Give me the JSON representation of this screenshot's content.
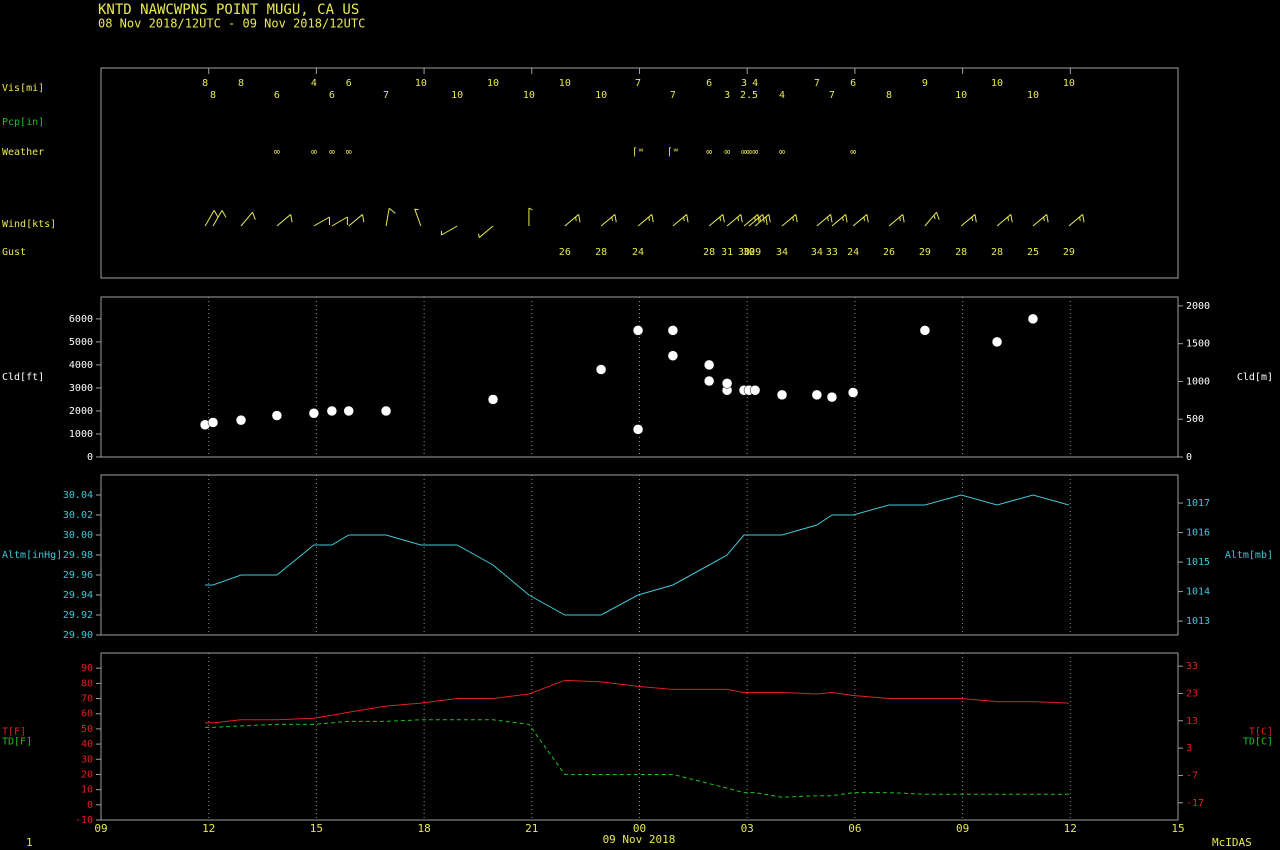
{
  "header": {
    "station": "KNTD  NAWCWPNS POINT MUGU, CA US",
    "period": "08 Nov 2018/12UTC - 09 Nov 2018/12UTC"
  },
  "footer": {
    "page": "1",
    "date": "09 Nov 2018",
    "brand": "McIDAS"
  },
  "chart_data": {
    "type": "meteogram",
    "grid": true,
    "xlim": [
      9,
      39
    ],
    "xticks": [
      {
        "value": 9,
        "label": "09"
      },
      {
        "value": 12,
        "label": "12"
      },
      {
        "value": 15,
        "label": "15"
      },
      {
        "value": 18,
        "label": "18"
      },
      {
        "value": 21,
        "label": "21"
      },
      {
        "value": 24,
        "label": "00"
      },
      {
        "value": 27,
        "label": "03"
      },
      {
        "value": 30,
        "label": "06"
      },
      {
        "value": 33,
        "label": "09"
      },
      {
        "value": 36,
        "label": "12"
      },
      {
        "value": 39,
        "label": "15"
      }
    ],
    "times": [
      11.9,
      12.12,
      12.9,
      13.9,
      14.93,
      15.43,
      15.9,
      16.94,
      17.91,
      18.92,
      19.92,
      20.92,
      21.92,
      22.93,
      23.96,
      24.93,
      25.94,
      26.44,
      26.91,
      27.05,
      27.22,
      27.97,
      28.94,
      29.36,
      29.95,
      30.95,
      31.95,
      32.96,
      33.96,
      34.96,
      35.96
    ],
    "obs_panel": {
      "vis_label": "Vis[mi]",
      "vis": [
        8,
        8,
        8,
        6,
        4,
        6,
        6,
        7,
        10,
        10,
        10,
        10,
        10,
        10,
        7,
        7,
        6,
        3,
        3,
        2.5,
        4,
        4,
        7,
        7,
        6,
        8,
        9,
        10,
        10,
        10,
        10
      ],
      "pcp_label": "Pcp[in]",
      "weather_label": "Weather",
      "weather": [
        null,
        null,
        null,
        "∞",
        "∞",
        "∞",
        "∞",
        null,
        null,
        null,
        null,
        null,
        null,
        null,
        "⌈ʷ",
        "⌈ʷ",
        "∞",
        "∞",
        "∞",
        "∞",
        "∞",
        "∞",
        null,
        null,
        "∞",
        null,
        null,
        null,
        null,
        null,
        null
      ],
      "wind_label": "Wind[kts]",
      "wind_dir": [
        30,
        30,
        40,
        50,
        60,
        60,
        50,
        10,
        340,
        240,
        230,
        0,
        50,
        50,
        50,
        50,
        50,
        50,
        50,
        50,
        50,
        50,
        50,
        50,
        50,
        50,
        40,
        50,
        50,
        50,
        50
      ],
      "wind_speed": [
        10,
        10,
        10,
        10,
        10,
        10,
        10,
        10,
        5,
        5,
        5,
        5,
        15,
        15,
        15,
        15,
        15,
        15,
        15,
        15,
        20,
        15,
        15,
        15,
        15,
        15,
        15,
        15,
        15,
        15,
        15
      ],
      "gust_label": "Gust",
      "gust": [
        null,
        null,
        null,
        null,
        null,
        null,
        null,
        null,
        null,
        null,
        null,
        null,
        26,
        28,
        24,
        null,
        28,
        31,
        30,
        30,
        29,
        34,
        34,
        33,
        24,
        26,
        29,
        28,
        28,
        25,
        29
      ]
    },
    "panels": [
      {
        "mark": "points",
        "y_labels": [
          "Cld[ft]"
        ],
        "y2_labels": [
          "Cld[m]"
        ],
        "label_color": "#ffffff",
        "ylim": [
          0,
          6950
        ],
        "yticks": [
          0,
          1000,
          2000,
          3000,
          4000,
          5000,
          6000
        ],
        "y2lim": [
          0,
          2118
        ],
        "y2ticks": [
          0,
          500,
          1000,
          1500,
          2000
        ],
        "series": [
          {
            "color": "#ffffff",
            "values": [
              1400,
              1500,
              1600,
              1800,
              1900,
              2000,
              2000,
              2000,
              null,
              null,
              2500,
              null,
              null,
              3800,
              1200,
              4400,
              3300,
              2900,
              2900,
              2900,
              2900,
              2700,
              2700,
              2600,
              2800,
              null,
              5500,
              null,
              5000,
              6000,
              null
            ]
          },
          {
            "color": "#ffffff",
            "values": [
              null,
              null,
              null,
              null,
              null,
              null,
              null,
              null,
              null,
              null,
              null,
              null,
              null,
              null,
              5500,
              5500,
              4000,
              3200,
              null,
              null,
              null,
              null,
              null,
              null,
              null,
              null,
              null,
              null,
              null,
              null,
              null
            ]
          }
        ]
      },
      {
        "mark": "line",
        "y_labels": [
          "Altm[inHg]"
        ],
        "y2_labels": [
          "Altm[mb]"
        ],
        "label_color": "#40c8d8",
        "ylim": [
          29.9,
          30.06
        ],
        "yticks": [
          {
            "value": 29.9,
            "label": "29.90"
          },
          {
            "value": 29.92,
            "label": "29.92"
          },
          {
            "value": 29.94,
            "label": "29.94"
          },
          {
            "value": 29.96,
            "label": "29.96"
          },
          {
            "value": 29.98,
            "label": "29.98"
          },
          {
            "value": 30.0,
            "label": "30.00"
          },
          {
            "value": 30.02,
            "label": "30.02"
          },
          {
            "value": 30.04,
            "label": "30.04"
          }
        ],
        "y2lim": [
          1012.53,
          1017.95
        ],
        "y2ticks": [
          1013,
          1014,
          1015,
          1016,
          1017
        ],
        "series": [
          {
            "color": "#40c8d8",
            "style": "solid",
            "values": [
              29.95,
              29.95,
              29.96,
              29.96,
              29.99,
              29.99,
              30.0,
              30.0,
              29.99,
              29.99,
              29.97,
              29.94,
              29.92,
              29.92,
              29.94,
              29.95,
              29.97,
              29.98,
              30.0,
              30.0,
              30.0,
              30.0,
              30.01,
              30.02,
              30.02,
              30.03,
              30.03,
              30.04,
              30.03,
              30.04,
              30.03
            ]
          }
        ]
      },
      {
        "mark": "line",
        "y_labels": [
          "T[F]",
          "TD[F]"
        ],
        "y2_labels": [
          "T[C]",
          "TD[C]"
        ],
        "label_color": "#e02020",
        "ylim": [
          -10,
          100
        ],
        "yticks": [
          -10,
          0,
          10,
          20,
          30,
          40,
          50,
          60,
          70,
          80,
          90
        ],
        "y2lim": [
          -23.3,
          37.8
        ],
        "y2ticks": [
          -17,
          -7,
          3,
          13,
          23,
          33
        ],
        "series": [
          {
            "color": "#e02020",
            "style": "solid",
            "values": [
              54,
              54,
              56,
              56,
              57,
              59,
              61,
              65,
              67,
              70,
              70,
              73,
              82,
              81,
              78,
              76,
              76,
              76,
              74,
              74,
              74,
              74,
              73,
              74,
              72,
              70,
              70,
              70,
              68,
              68,
              67
            ]
          },
          {
            "color": "#20c020",
            "style": "dashed",
            "values": [
              51,
              51,
              52,
              53,
              53,
              54,
              55,
              55,
              56,
              56,
              56,
              53,
              20,
              20,
              20,
              20,
              14,
              11,
              8,
              8,
              8,
              5,
              6,
              6,
              8,
              8,
              7,
              7,
              7,
              7,
              7
            ]
          }
        ]
      }
    ]
  }
}
